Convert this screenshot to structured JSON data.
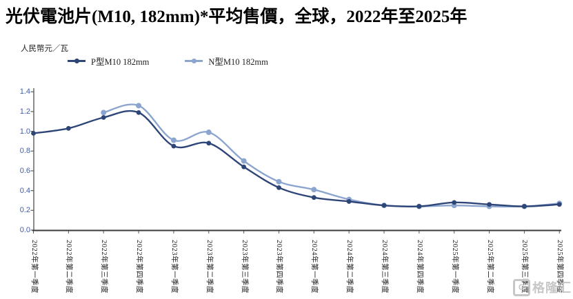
{
  "watermark": {
    "text": "格隆汇",
    "icon": "gelonghui-logo",
    "letter": "G",
    "color": "#c7c7c7"
  },
  "colors": {
    "p_series": "#2E4577",
    "n_series": "#8CA5CF",
    "x_axis_line": "#3a3a3a",
    "y_axis_line": "#5a5a5a",
    "y_tick_labels": "#3E5CA8",
    "x_tick_labels": "#1c1c1c"
  },
  "chart_data": {
    "type": "line",
    "title": "光伏電池片(M10, 182mm)*平均售價，全球，2022年至2025年",
    "ylabel": "人民幣元／瓦",
    "xlabel": "",
    "ylim": [
      0,
      1.4
    ],
    "yticks": [
      0.0,
      0.2,
      0.4,
      0.6,
      0.8,
      1.0,
      1.2,
      1.4
    ],
    "grid": false,
    "legend_position": "top-left",
    "marker": "circle",
    "line_style": "smooth",
    "x_tick_label_rotation_deg": 90,
    "categories": [
      "2022年第一季度",
      "2022年第二季度",
      "2022年第三季度",
      "2022年第四季度",
      "2023年第一季度",
      "2023年第二季度",
      "2023年第三季度",
      "2023年第四季度",
      "2024年第一季度",
      "2024年第二季度",
      "2024年第三季度",
      "2024年第四季度",
      "2025年第一季度",
      "2025年第二季度",
      "2025年第三季度",
      "2025年第四季度"
    ],
    "series": [
      {
        "name": "P型M10 182mm",
        "color": "#2E4577",
        "values": [
          0.98,
          1.03,
          1.14,
          1.19,
          0.85,
          0.88,
          0.64,
          0.43,
          0.33,
          0.29,
          0.25,
          0.24,
          0.28,
          0.26,
          0.24,
          0.26
        ]
      },
      {
        "name": "N型M10 182mm",
        "color": "#8CA5CF",
        "values": [
          null,
          null,
          1.19,
          1.26,
          0.91,
          0.99,
          0.7,
          0.49,
          0.41,
          0.31,
          0.25,
          0.24,
          0.25,
          0.24,
          0.24,
          0.27
        ]
      }
    ]
  }
}
